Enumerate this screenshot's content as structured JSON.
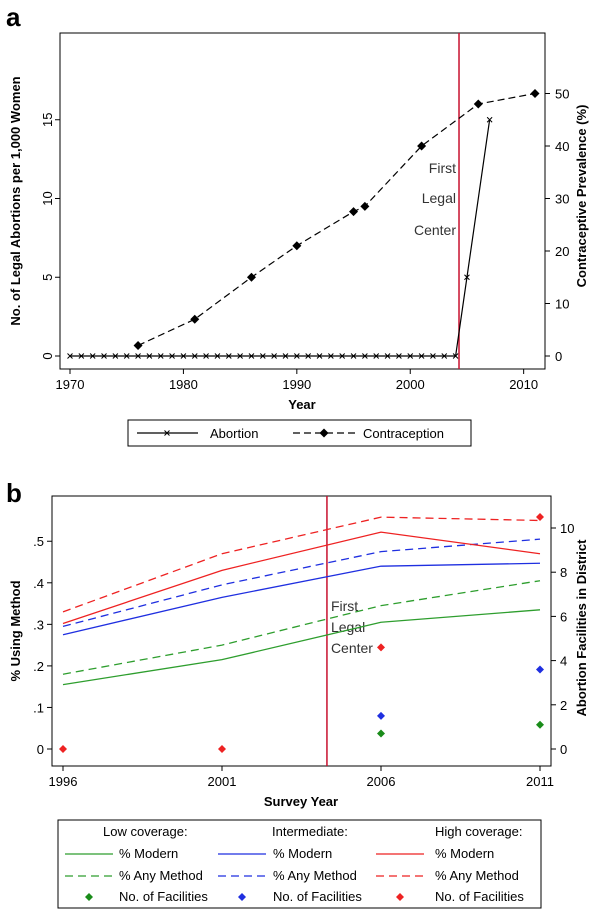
{
  "chart_data": [
    {
      "panel": "a",
      "type": "line",
      "xlabel": "Year",
      "ylabel_left": "No. of Legal Abortions per 1,000 Women",
      "ylabel_right": "Contraceptive Prevalence (%)",
      "xlim": [
        1970,
        2011
      ],
      "ylim_left": [
        0,
        20
      ],
      "ylim_right": [
        0,
        60
      ],
      "xticks": [
        1970,
        1980,
        1990,
        2000,
        2010
      ],
      "yticks_left": [
        0,
        5,
        10,
        15
      ],
      "yticks_right": [
        0,
        10,
        20,
        30,
        40,
        50
      ],
      "vline": 2004.3,
      "annotation": [
        "First",
        "Legal",
        "Center"
      ],
      "legend": {
        "placement": "bottom",
        "entries": [
          "Abortion",
          "Contraception"
        ]
      },
      "series": [
        {
          "name": "Abortion",
          "axis": "left",
          "style": "solid",
          "marker": "x",
          "x": [
            1970,
            1971,
            1972,
            1973,
            1974,
            1975,
            1976,
            1977,
            1978,
            1979,
            1980,
            1981,
            1982,
            1983,
            1984,
            1985,
            1986,
            1987,
            1988,
            1989,
            1990,
            1991,
            1992,
            1993,
            1994,
            1995,
            1996,
            1997,
            1998,
            1999,
            2000,
            2001,
            2002,
            2003,
            2004,
            2005,
            2007
          ],
          "y": [
            0,
            0,
            0,
            0,
            0,
            0,
            0,
            0,
            0,
            0,
            0,
            0,
            0,
            0,
            0,
            0,
            0,
            0,
            0,
            0,
            0,
            0,
            0,
            0,
            0,
            0,
            0,
            0,
            0,
            0,
            0,
            0,
            0,
            0,
            0,
            5,
            15
          ]
        },
        {
          "name": "Contraception",
          "axis": "right",
          "style": "dashed",
          "marker": "diamond",
          "x": [
            1976,
            1981,
            1986,
            1990,
            1995,
            1996,
            2001,
            2006,
            2011
          ],
          "y": [
            2,
            7,
            15,
            21,
            27.5,
            28.5,
            40,
            48,
            50
          ]
        }
      ]
    },
    {
      "panel": "b",
      "type": "line",
      "xlabel": "Survey Year",
      "ylabel_left": "% Using Method",
      "ylabel_right": "Abortion Facilities in District",
      "xlim": [
        1996,
        2011
      ],
      "ylim_left": [
        0,
        0.58
      ],
      "ylim_right": [
        0,
        10.9
      ],
      "xticks": [
        1996,
        2001,
        2006,
        2011
      ],
      "yticks_left": [
        0,
        0.1,
        0.2,
        0.3,
        0.4,
        0.5
      ],
      "ytick_labels_left": [
        "0",
        ".1",
        ".2",
        ".3",
        ".4",
        ".5"
      ],
      "yticks_right": [
        0,
        2,
        4,
        6,
        8,
        10
      ],
      "vline": 2004.3,
      "annotation": [
        "First",
        "Legal",
        "Center"
      ],
      "legend": {
        "placement": "bottom",
        "groups": [
          {
            "header": "Low coverage:",
            "color": "#2e9e2e",
            "entries": [
              "% Modern",
              "% Any Method",
              "No. of Facilities"
            ]
          },
          {
            "header": "Intermediate:",
            "color": "#1f2fe0",
            "entries": [
              "% Modern",
              "% Any Method",
              "No. of Facilities"
            ]
          },
          {
            "header": "High coverage:",
            "color": "#ee2222",
            "entries": [
              "% Modern",
              "% Any Method",
              "No. of Facilities"
            ]
          }
        ]
      },
      "x": [
        1996,
        2001,
        2006,
        2011
      ],
      "series": [
        {
          "name": "% Modern",
          "group": "Low coverage:",
          "color": "#2e9e2e",
          "style": "solid",
          "axis": "left",
          "values": [
            0.155,
            0.215,
            0.305,
            0.335
          ]
        },
        {
          "name": "% Any Method",
          "group": "Low coverage:",
          "color": "#2e9e2e",
          "style": "dashed",
          "axis": "left",
          "values": [
            0.18,
            0.25,
            0.345,
            0.405
          ]
        },
        {
          "name": "% Modern",
          "group": "Intermediate:",
          "color": "#1f2fe0",
          "style": "solid",
          "axis": "left",
          "values": [
            0.275,
            0.365,
            0.44,
            0.447
          ]
        },
        {
          "name": "% Any Method",
          "group": "Intermediate:",
          "color": "#1f2fe0",
          "style": "dashed",
          "axis": "left",
          "values": [
            0.295,
            0.395,
            0.475,
            0.505
          ]
        },
        {
          "name": "% Modern",
          "group": "High coverage:",
          "color": "#ee2222",
          "style": "solid",
          "axis": "left",
          "values": [
            0.302,
            0.43,
            0.522,
            0.47
          ]
        },
        {
          "name": "% Any Method",
          "group": "High coverage:",
          "color": "#ee2222",
          "style": "dashed",
          "axis": "left",
          "values": [
            0.33,
            0.47,
            0.558,
            0.55
          ]
        },
        {
          "name": "No. of Facilities",
          "group": "Low coverage:",
          "color": "#1a8c1a",
          "style": "marker",
          "axis": "right",
          "x": [
            2006,
            2011
          ],
          "values": [
            0.7,
            1.1
          ]
        },
        {
          "name": "No. of Facilities",
          "group": "Intermediate:",
          "color": "#1f2fe0",
          "style": "marker",
          "axis": "right",
          "x": [
            2006,
            2011
          ],
          "values": [
            1.5,
            3.6
          ]
        },
        {
          "name": "No. of Facilities",
          "group": "High coverage:",
          "color": "#ee2222",
          "style": "marker",
          "axis": "right",
          "x": [
            1996,
            2001,
            2006,
            2011
          ],
          "values": [
            0,
            0,
            4.6,
            10.5
          ]
        }
      ]
    }
  ]
}
